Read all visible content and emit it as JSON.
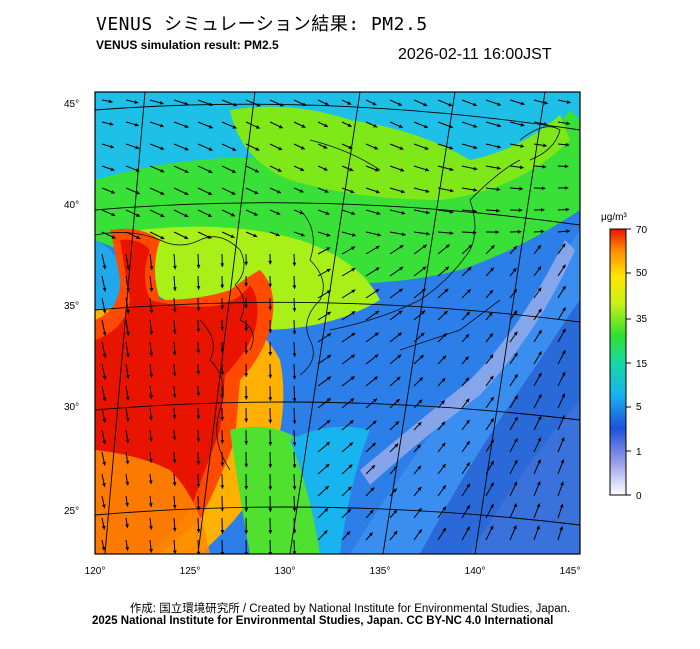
{
  "header": {
    "title_jp": "VENUS シミュレーション結果: PM2.5",
    "title_en": "VENUS simulation result: PM2.5",
    "timestamp": "2026-02-11 16:00JST"
  },
  "map": {
    "lat_labels": [
      "45°",
      "40°",
      "35°",
      "30°",
      "25°"
    ],
    "lon_labels": [
      "120°",
      "125°",
      "130°",
      "135°",
      "140°",
      "145°"
    ],
    "region": "East Asia / Japan",
    "wind_vectors": "arrows-field"
  },
  "colorbar": {
    "unit": "μg/m³",
    "ticks": [
      "70",
      "50",
      "35",
      "15",
      "5",
      "1",
      "0"
    ],
    "colors": [
      "#ffffff",
      "#9aa0e6",
      "#1e50dc",
      "#18b4f0",
      "#18d8a0",
      "#30e030",
      "#c8f018",
      "#ffe600",
      "#ff8c00",
      "#e81400"
    ]
  },
  "footer": {
    "credit_line": "作成: 国立環境研究所 / Created by National Institute for Environmental Studies, Japan.",
    "copyright_line": "2025 National Institute for Environmental Studies, Japan. CC BY-NC 4.0 International"
  }
}
